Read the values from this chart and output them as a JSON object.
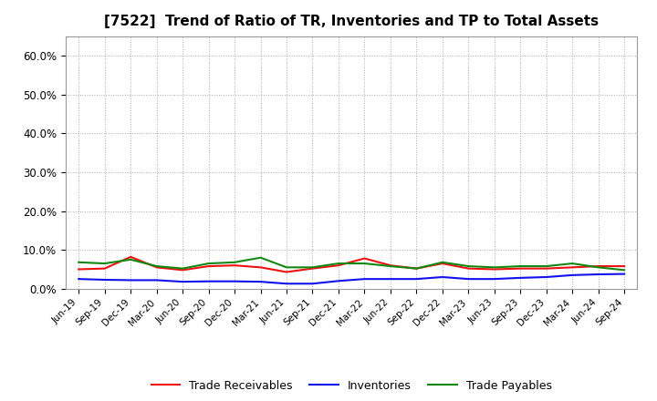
{
  "title": "[7522]  Trend of Ratio of TR, Inventories and TP to Total Assets",
  "x_labels": [
    "Jun-19",
    "Sep-19",
    "Dec-19",
    "Mar-20",
    "Jun-20",
    "Sep-20",
    "Dec-20",
    "Mar-21",
    "Jun-21",
    "Sep-21",
    "Dec-21",
    "Mar-22",
    "Jun-22",
    "Sep-22",
    "Dec-22",
    "Mar-23",
    "Jun-23",
    "Sep-23",
    "Dec-23",
    "Mar-24",
    "Jun-24",
    "Sep-24"
  ],
  "trade_receivables": [
    0.05,
    0.052,
    0.082,
    0.055,
    0.048,
    0.058,
    0.06,
    0.055,
    0.043,
    0.052,
    0.06,
    0.078,
    0.06,
    0.052,
    0.065,
    0.052,
    0.05,
    0.052,
    0.052,
    0.055,
    0.058,
    0.058
  ],
  "inventories": [
    0.025,
    0.023,
    0.022,
    0.022,
    0.018,
    0.019,
    0.019,
    0.018,
    0.013,
    0.013,
    0.02,
    0.025,
    0.025,
    0.025,
    0.03,
    0.025,
    0.025,
    0.028,
    0.03,
    0.035,
    0.037,
    0.038
  ],
  "trade_payables": [
    0.068,
    0.065,
    0.075,
    0.058,
    0.052,
    0.065,
    0.068,
    0.08,
    0.055,
    0.055,
    0.065,
    0.065,
    0.058,
    0.052,
    0.068,
    0.058,
    0.055,
    0.058,
    0.058,
    0.065,
    0.055,
    0.048
  ],
  "tr_color": "#EE1111",
  "inv_color": "#1111EE",
  "tp_color": "#118811",
  "ylim": [
    0.0,
    0.65
  ],
  "yticks": [
    0.0,
    0.1,
    0.2,
    0.3,
    0.4,
    0.5,
    0.6
  ],
  "legend_labels": [
    "Trade Receivables",
    "Inventories",
    "Trade Payables"
  ],
  "bg_color": "#FFFFFF",
  "plot_bg_color": "#FFFFFF",
  "grid_color": "#AAAAAA",
  "title_fontsize": 11
}
